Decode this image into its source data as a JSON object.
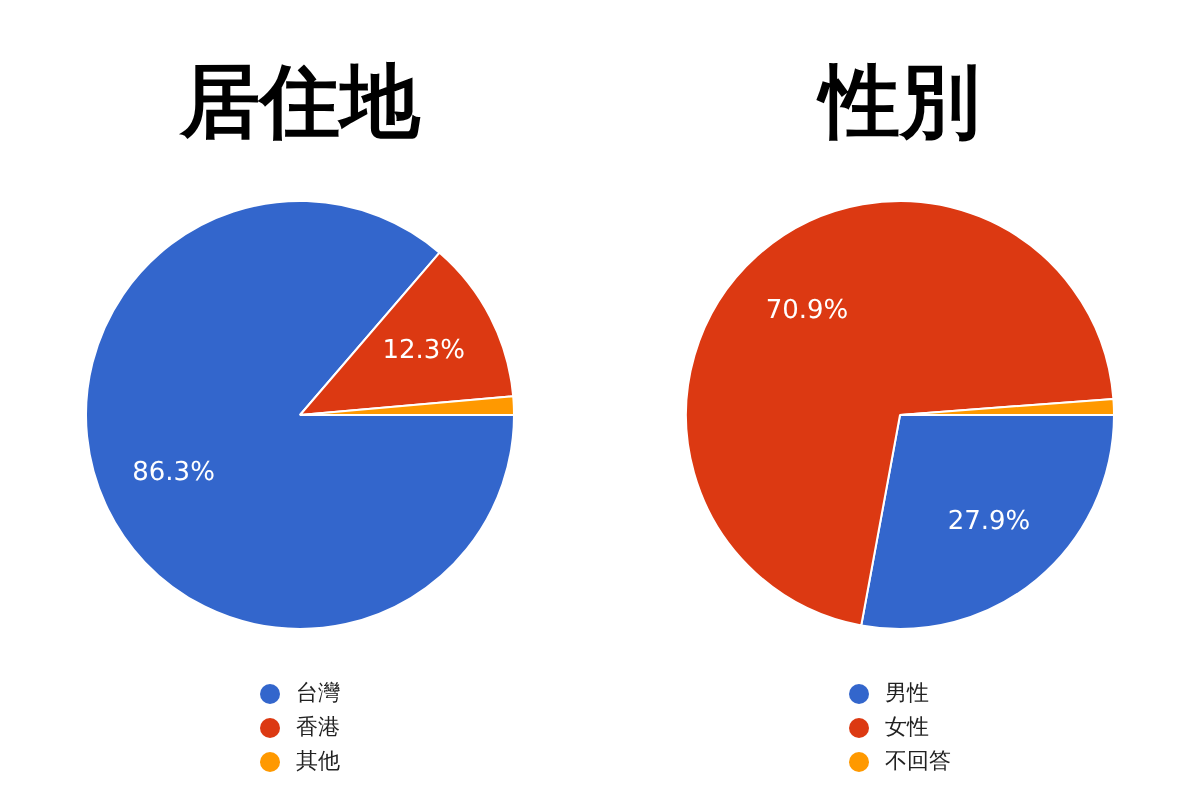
{
  "chart_data": [
    {
      "type": "pie",
      "title": "居住地",
      "categories": [
        "台灣",
        "香港",
        "其他"
      ],
      "values": [
        86.3,
        12.3,
        1.4
      ],
      "colors": [
        "#3366cc",
        "#dc3912",
        "#ff9900"
      ],
      "value_labels": [
        "86.3%",
        "12.3%",
        null
      ],
      "legend": "bottom"
    },
    {
      "type": "pie",
      "title": "性別",
      "categories": [
        "男性",
        "女性",
        "不回答"
      ],
      "values": [
        27.9,
        70.9,
        1.2
      ],
      "colors": [
        "#3366cc",
        "#dc3912",
        "#ff9900"
      ],
      "value_labels": [
        "27.9%",
        "70.9%",
        null
      ],
      "legend": "bottom"
    }
  ]
}
